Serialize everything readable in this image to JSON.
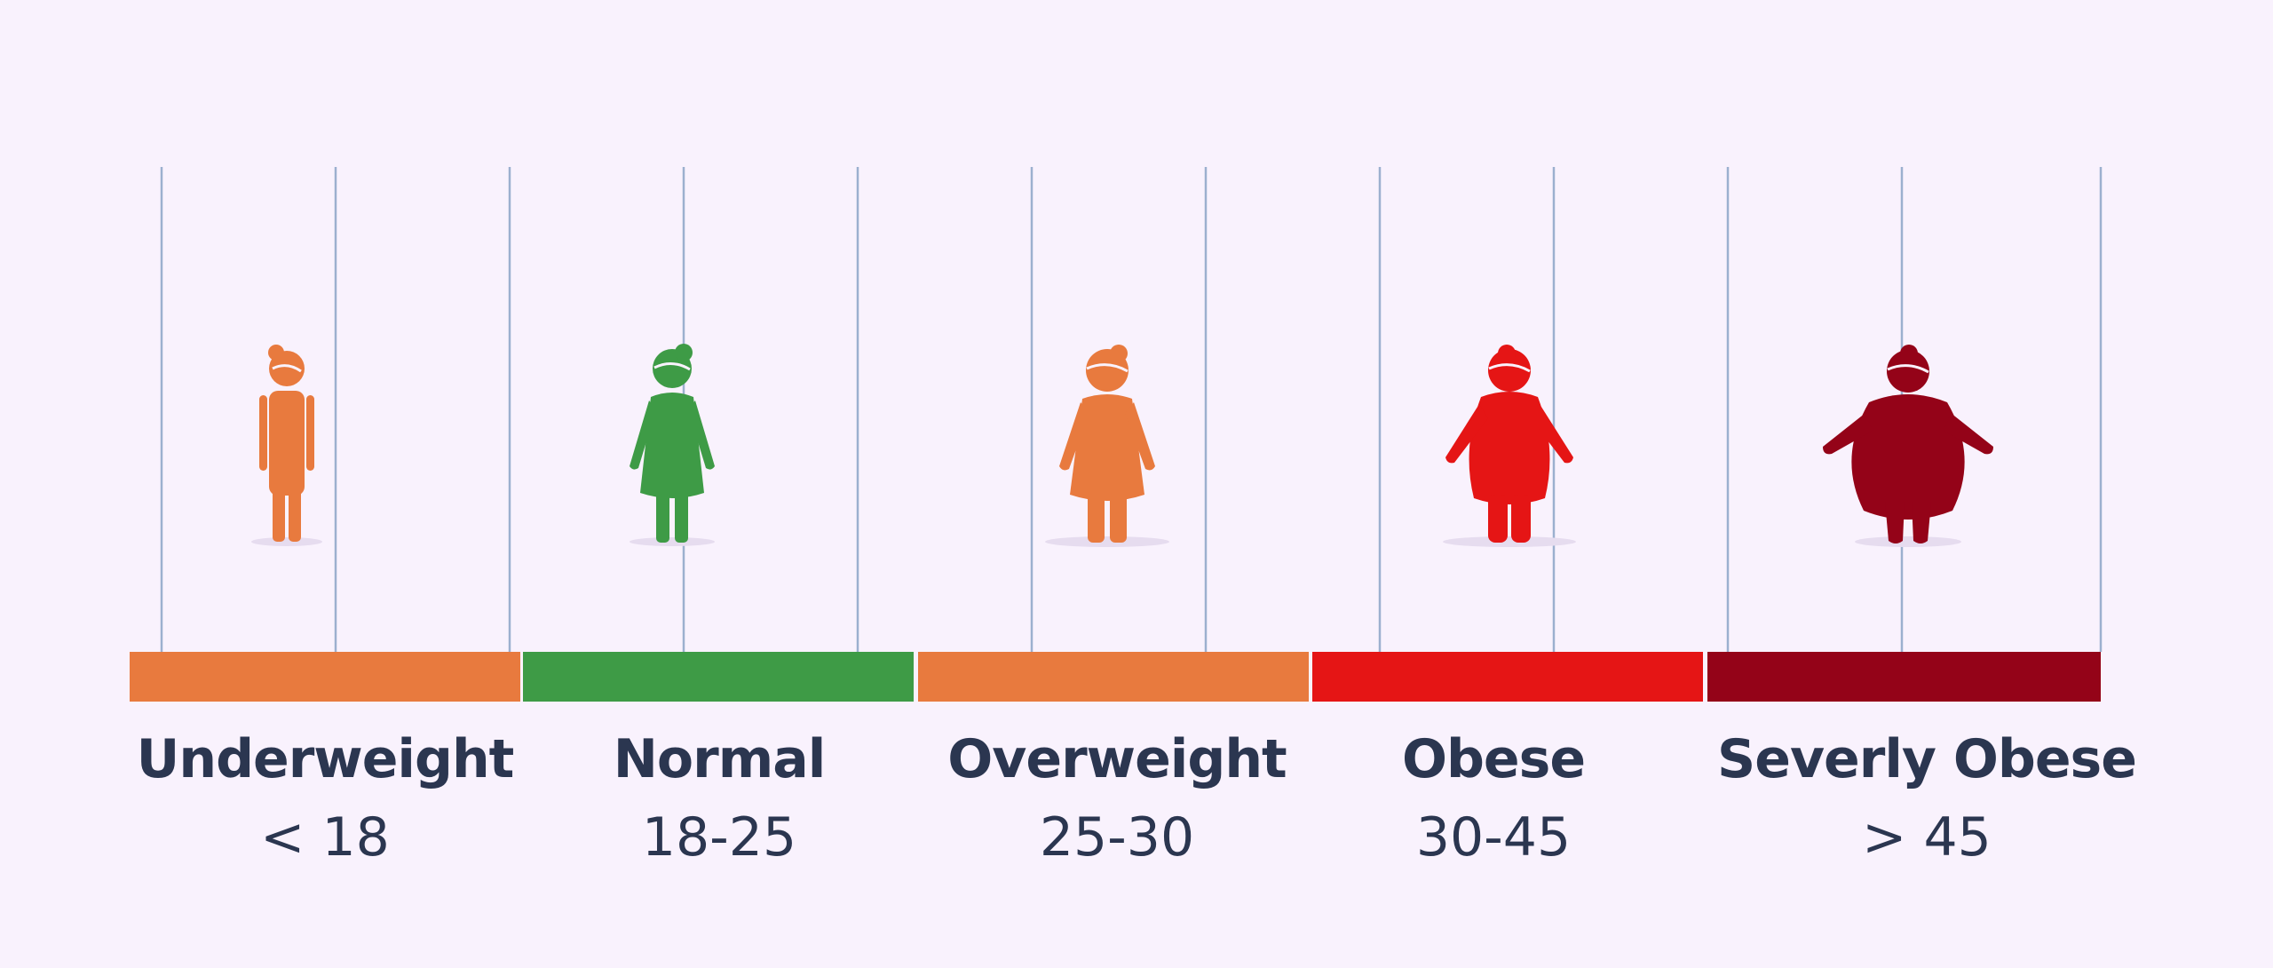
{
  "categories": [
    {
      "name": "Underweight",
      "range": "< 18",
      "color": "#e87a3e",
      "figure": "thin-woman-icon"
    },
    {
      "name": "Normal",
      "range": "18-25",
      "color": "#3e9b46",
      "figure": "normal-woman-icon"
    },
    {
      "name": "Overweight",
      "range": "25-30",
      "color": "#e87a3e",
      "figure": "overweight-woman-icon"
    },
    {
      "name": "Obese",
      "range": "30-45",
      "color": "#e51515",
      "figure": "obese-woman-icon"
    },
    {
      "name": "Severly Obese",
      "range": "> 45",
      "color": "#940318",
      "figure": "severely-obese-woman-icon"
    }
  ],
  "colors": {
    "background": "#f9f2fd",
    "grid_line": "#9cb0cf",
    "text": "#2b3650"
  }
}
